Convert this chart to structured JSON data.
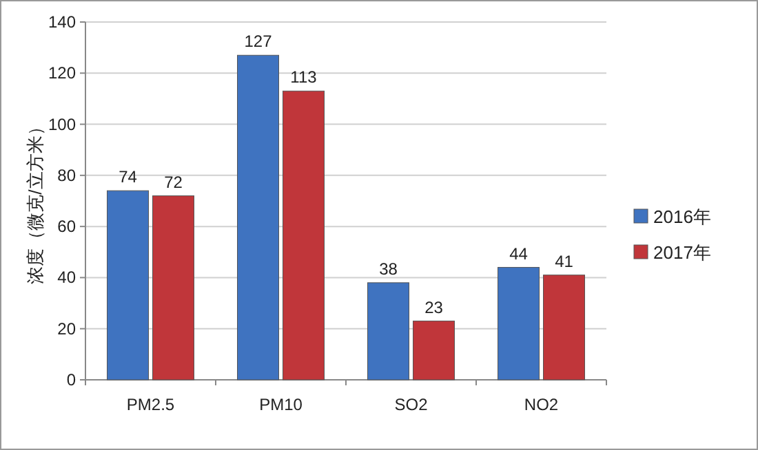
{
  "chart_data": {
    "type": "bar",
    "ylabel": "浓度（微克/立方米）",
    "categories": [
      "PM2.5",
      "PM10",
      "SO2",
      "NO2"
    ],
    "series": [
      {
        "name": "2016年",
        "color": "#3f73c0",
        "values": [
          74,
          127,
          38,
          44
        ]
      },
      {
        "name": "2017年",
        "color": "#c0363a",
        "values": [
          72,
          113,
          23,
          41
        ]
      }
    ],
    "ylim": [
      0,
      140
    ],
    "yticks": [
      0,
      20,
      40,
      60,
      80,
      100,
      120,
      140
    ],
    "data_labels": true,
    "legend": "right",
    "grid": "y"
  }
}
